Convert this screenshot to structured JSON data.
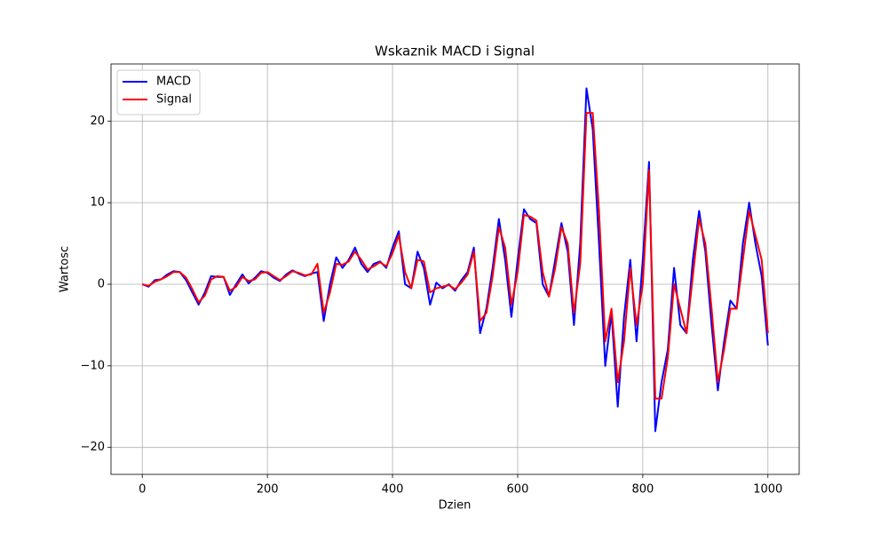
{
  "chart_data": {
    "type": "line",
    "title": "Wskaznik MACD i Signal",
    "x_label": "Dzien",
    "y_label": "Wartosc",
    "x": [
      0,
      10,
      20,
      30,
      40,
      50,
      60,
      70,
      80,
      90,
      100,
      110,
      120,
      130,
      140,
      150,
      160,
      170,
      180,
      190,
      200,
      210,
      220,
      230,
      240,
      250,
      260,
      270,
      280,
      290,
      300,
      310,
      320,
      330,
      340,
      350,
      360,
      370,
      380,
      390,
      400,
      410,
      420,
      430,
      440,
      450,
      460,
      470,
      480,
      490,
      500,
      510,
      520,
      530,
      540,
      550,
      560,
      570,
      580,
      590,
      600,
      610,
      620,
      630,
      640,
      650,
      660,
      670,
      680,
      690,
      700,
      710,
      720,
      730,
      740,
      750,
      760,
      770,
      780,
      790,
      800,
      810,
      820,
      830,
      840,
      850,
      860,
      870,
      880,
      890,
      900,
      910,
      920,
      930,
      940,
      950,
      960,
      970,
      980,
      990,
      1000
    ],
    "series": [
      {
        "name": "MACD",
        "color": "#0000ff",
        "values": [
          0,
          -0.3,
          0.5,
          0.6,
          1.2,
          1.6,
          1.5,
          0.5,
          -1.0,
          -2.5,
          -1.0,
          1.0,
          0.9,
          0.9,
          -1.3,
          0,
          1.2,
          0.1,
          0.8,
          1.6,
          1.4,
          0.8,
          0.4,
          1.2,
          1.7,
          1.3,
          1.0,
          1.3,
          1.5,
          -4.5,
          0,
          3.3,
          2.0,
          3.0,
          4.5,
          2.5,
          1.5,
          2.5,
          2.8,
          2.0,
          4.5,
          6.5,
          0,
          -0.5,
          4.0,
          2.0,
          -2.5,
          0.2,
          -0.5,
          0,
          -0.8,
          0.5,
          1.5,
          4.5,
          -6,
          -3,
          2,
          8,
          3,
          -4,
          3,
          9.2,
          8,
          7.5,
          0,
          -1.5,
          3,
          7.5,
          4,
          -5,
          5,
          24,
          19,
          5,
          -10,
          -3.5,
          -15,
          -4,
          3,
          -7,
          3,
          15,
          -18,
          -12,
          -8,
          2,
          -5,
          -6,
          3,
          9,
          4,
          -5,
          -13,
          -7,
          -2,
          -3,
          5,
          10,
          5,
          1,
          -7.5
        ]
      },
      {
        "name": "Signal",
        "color": "#ff0000",
        "values": [
          0,
          -0.2,
          0.3,
          0.6,
          1.0,
          1.5,
          1.5,
          0.8,
          -0.6,
          -2.2,
          -1.4,
          0.6,
          1.0,
          0.9,
          -0.8,
          -0.3,
          0.9,
          0.4,
          0.6,
          1.4,
          1.5,
          1.0,
          0.5,
          1.0,
          1.6,
          1.4,
          1.1,
          1.2,
          2.5,
          -3.5,
          -1.0,
          2.5,
          2.4,
          2.8,
          4.0,
          3.0,
          1.8,
          2.2,
          2.7,
          2.2,
          3.8,
          6.0,
          1.5,
          -0.5,
          3.0,
          2.8,
          -1.0,
          -0.5,
          -0.3,
          -0.1,
          -0.6,
          0.2,
          1.2,
          4.0,
          -4.5,
          -3.5,
          1.0,
          7.0,
          4.5,
          -2.5,
          1.5,
          8.5,
          8.3,
          7.8,
          1.5,
          -1.5,
          2.0,
          7.0,
          5.0,
          -3.5,
          2.5,
          21,
          21,
          9,
          -7,
          -3,
          -12,
          -7,
          2,
          -5,
          0,
          14,
          -14,
          -14,
          -9,
          0,
          -3,
          -6,
          1,
          8,
          5,
          -3,
          -12,
          -8,
          -3,
          -3,
          3,
          9,
          6,
          3,
          -6
        ]
      }
    ],
    "xlim": [
      -50,
      1050
    ],
    "ylim": [
      -23.3,
      27.0
    ],
    "xticks": [
      0,
      200,
      400,
      600,
      800,
      1000
    ],
    "yticks": [
      {
        "value": -20,
        "label": "−20"
      },
      {
        "value": -10,
        "label": "−10"
      },
      0,
      10,
      20
    ],
    "grid": true,
    "legend": "upper-left"
  }
}
